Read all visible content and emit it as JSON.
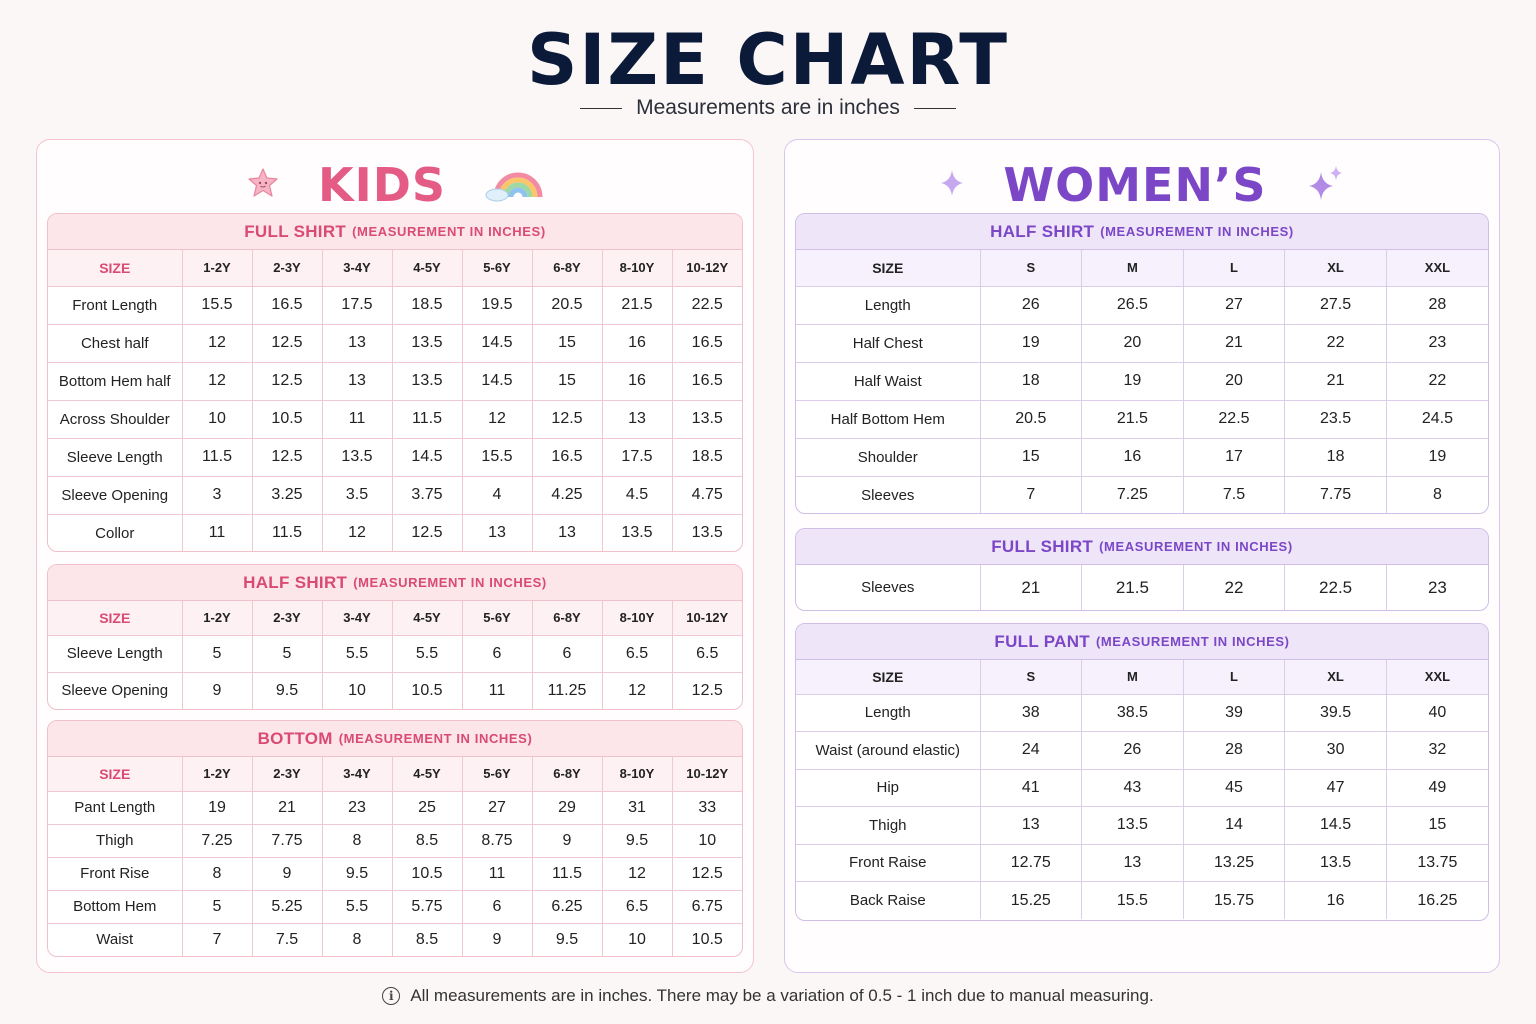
{
  "title": "SIZE CHART",
  "subtitle": "Measurements are in inches",
  "kids": {
    "title": "KIDS",
    "sizes": [
      "1-2Y",
      "2-3Y",
      "3-4Y",
      "4-5Y",
      "5-6Y",
      "6-8Y",
      "8-10Y",
      "10-12Y"
    ],
    "size_header": "SIZE",
    "full_shirt": {
      "title": "FULL SHIRT",
      "suffix": "(MEASUREMENT IN INCHES)",
      "rows": [
        {
          "label": "Front Length",
          "values": [
            "15.5",
            "16.5",
            "17.5",
            "18.5",
            "19.5",
            "20.5",
            "21.5",
            "22.5"
          ]
        },
        {
          "label": "Chest half",
          "values": [
            "12",
            "12.5",
            "13",
            "13.5",
            "14.5",
            "15",
            "16",
            "16.5"
          ]
        },
        {
          "label": "Bottom Hem half",
          "values": [
            "12",
            "12.5",
            "13",
            "13.5",
            "14.5",
            "15",
            "16",
            "16.5"
          ]
        },
        {
          "label": "Across Shoulder",
          "values": [
            "10",
            "10.5",
            "11",
            "11.5",
            "12",
            "12.5",
            "13",
            "13.5"
          ]
        },
        {
          "label": "Sleeve Length",
          "values": [
            "11.5",
            "12.5",
            "13.5",
            "14.5",
            "15.5",
            "16.5",
            "17.5",
            "18.5"
          ]
        },
        {
          "label": "Sleeve Opening",
          "values": [
            "3",
            "3.25",
            "3.5",
            "3.75",
            "4",
            "4.25",
            "4.5",
            "4.75"
          ]
        },
        {
          "label": "Collor",
          "values": [
            "11",
            "11.5",
            "12",
            "12.5",
            "13",
            "13",
            "13.5",
            "13.5"
          ]
        }
      ]
    },
    "half_shirt": {
      "title": "HALF SHIRT",
      "suffix": "(MEASUREMENT IN INCHES)",
      "rows": [
        {
          "label": "Sleeve Length",
          "values": [
            "5",
            "5",
            "5.5",
            "5.5",
            "6",
            "6",
            "6.5",
            "6.5"
          ]
        },
        {
          "label": "Sleeve Opening",
          "values": [
            "9",
            "9.5",
            "10",
            "10.5",
            "11",
            "11.25",
            "12",
            "12.5"
          ]
        }
      ]
    },
    "bottom": {
      "title": "BOTTOM",
      "suffix": "(MEASUREMENT IN INCHES)",
      "rows": [
        {
          "label": "Pant Length",
          "values": [
            "19",
            "21",
            "23",
            "25",
            "27",
            "29",
            "31",
            "33"
          ]
        },
        {
          "label": "Thigh",
          "values": [
            "7.25",
            "7.75",
            "8",
            "8.5",
            "8.75",
            "9",
            "9.5",
            "10"
          ]
        },
        {
          "label": "Front Rise",
          "values": [
            "8",
            "9",
            "9.5",
            "10.5",
            "11",
            "11.5",
            "12",
            "12.5"
          ]
        },
        {
          "label": "Bottom Hem",
          "values": [
            "5",
            "5.25",
            "5.5",
            "5.75",
            "6",
            "6.25",
            "6.5",
            "6.75"
          ]
        },
        {
          "label": "Waist",
          "values": [
            "7",
            "7.5",
            "8",
            "8.5",
            "9",
            "9.5",
            "10",
            "10.5"
          ]
        }
      ]
    }
  },
  "women": {
    "title": "WOMEN’S",
    "sizes": [
      "S",
      "M",
      "L",
      "XL",
      "XXL"
    ],
    "size_header": "SIZE",
    "half_shirt": {
      "title": "HALF SHIRT",
      "suffix": "(MEASUREMENT IN INCHES)",
      "rows": [
        {
          "label": "Length",
          "values": [
            "26",
            "26.5",
            "27",
            "27.5",
            "28"
          ]
        },
        {
          "label": "Half Chest",
          "values": [
            "19",
            "20",
            "21",
            "22",
            "23"
          ]
        },
        {
          "label": "Half Waist",
          "values": [
            "18",
            "19",
            "20",
            "21",
            "22"
          ]
        },
        {
          "label": "Half Bottom Hem",
          "values": [
            "20.5",
            "21.5",
            "22.5",
            "23.5",
            "24.5"
          ]
        },
        {
          "label": "Shoulder",
          "values": [
            "15",
            "16",
            "17",
            "18",
            "19"
          ]
        },
        {
          "label": "Sleeves",
          "values": [
            "7",
            "7.25",
            "7.5",
            "7.75",
            "8"
          ]
        }
      ]
    },
    "full_shirt": {
      "title": "FULL SHIRT",
      "suffix": "(MEASUREMENT IN INCHES)",
      "rows": [
        {
          "label": "Sleeves",
          "values": [
            "21",
            "21.5",
            "22",
            "22.5",
            "23"
          ]
        }
      ]
    },
    "full_pant": {
      "title": "FULL PANT",
      "suffix": "(MEASUREMENT IN INCHES)",
      "rows": [
        {
          "label": "Length",
          "values": [
            "38",
            "38.5",
            "39",
            "39.5",
            "40"
          ]
        },
        {
          "label": "Waist (around elastic)",
          "values": [
            "24",
            "26",
            "28",
            "30",
            "32"
          ]
        },
        {
          "label": "Hip",
          "values": [
            "41",
            "43",
            "45",
            "47",
            "49"
          ]
        },
        {
          "label": "Thigh",
          "values": [
            "13",
            "13.5",
            "14",
            "14.5",
            "15"
          ]
        },
        {
          "label": "Front Raise",
          "values": [
            "12.75",
            "13",
            "13.25",
            "13.5",
            "13.75"
          ]
        },
        {
          "label": "Back Raise",
          "values": [
            "15.25",
            "15.5",
            "15.75",
            "16",
            "16.25"
          ]
        }
      ]
    }
  },
  "footer": "All measurements are in inches. There may be a variation of 0.5 - 1 inch due to manual measuring.",
  "icons": {
    "kids_left": "star-icon",
    "kids_right": "rainbow-icon",
    "women_left": "sparkle-icon",
    "women_right": "sparkles-icon",
    "footer": "info-icon"
  },
  "colors": {
    "kids_accent": "#e45c86",
    "women_accent": "#7b47c7",
    "title": "#0c1a3a"
  }
}
